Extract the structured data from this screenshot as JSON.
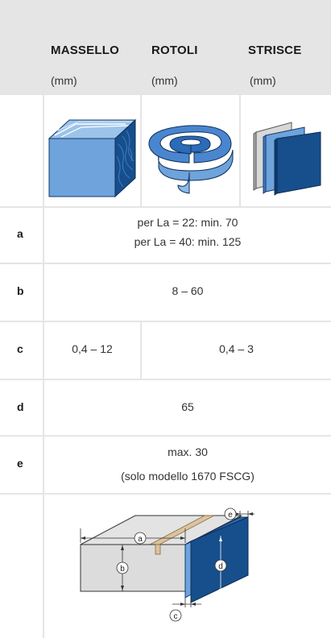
{
  "header": {
    "columns": [
      {
        "name": "MASSELLO",
        "unit": "(mm)"
      },
      {
        "name": "ROTOLI",
        "unit": "(mm)"
      },
      {
        "name": "STRISCE",
        "unit": "(mm)"
      }
    ]
  },
  "rows": {
    "a": {
      "label": "a",
      "line1": "per La = 22: min. 70",
      "line2": "per La = 40: min. 125"
    },
    "b": {
      "label": "b",
      "value": "8 – 60"
    },
    "c": {
      "label": "c",
      "value_massello": "0,4 – 12",
      "value_rotoli_strisce": "0,4 – 3"
    },
    "d": {
      "label": "d",
      "value": "65"
    },
    "e": {
      "label": "e",
      "line1": "max. 30",
      "line2": "(solo modello 1670 FSCG)"
    }
  },
  "diagram": {
    "labels": {
      "a": "a",
      "b": "b",
      "c": "c",
      "d": "d",
      "e": "e"
    }
  },
  "icons": {
    "massello": "wood-block-icon",
    "rotoli": "roll-icon",
    "strisce": "strips-icon"
  },
  "colors": {
    "header_bg": "#e5e5e5",
    "blue_dark": "#174e8c",
    "blue_light": "#6fa3dc"
  }
}
